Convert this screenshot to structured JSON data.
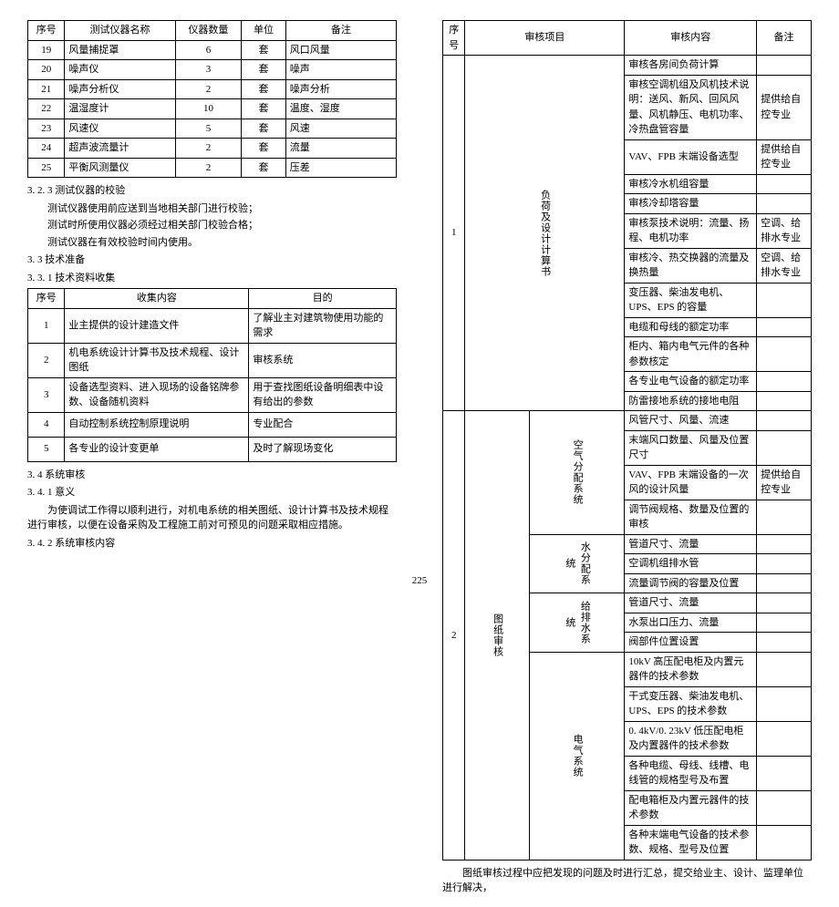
{
  "left": {
    "table1": {
      "headers": [
        "序号",
        "测试仪器名称",
        "仪器数量",
        "单位",
        "备注"
      ],
      "rows": [
        [
          "19",
          "风量捕捉罩",
          "6",
          "套",
          "风口风量"
        ],
        [
          "20",
          "噪声仪",
          "3",
          "套",
          "噪声"
        ],
        [
          "21",
          "噪声分析仪",
          "2",
          "套",
          "噪声分析"
        ],
        [
          "22",
          "温湿度计",
          "10",
          "套",
          "温度、湿度"
        ],
        [
          "23",
          "风速仪",
          "5",
          "套",
          "风速"
        ],
        [
          "24",
          "超声波流量计",
          "2",
          "套",
          "流量"
        ],
        [
          "25",
          "平衡风测量仪",
          "2",
          "套",
          "压差"
        ]
      ]
    },
    "s323": "3. 2. 3  测试仪器的校验",
    "p1": "测试仪器使用前应送到当地相关部门进行校验；",
    "p2": "测试时所使用仪器必须经过相关部门校验合格；",
    "p3": "测试仪器在有效校验时间内使用。",
    "s33": "3. 3  技术准备",
    "s331": "3. 3. 1  技术资料收集",
    "table2": {
      "headers": [
        "序号",
        "收集内容",
        "目的"
      ],
      "rows": [
        [
          "1",
          "业主提供的设计建造文件",
          "了解业主对建筑物使用功能的需求"
        ],
        [
          "2",
          "机电系统设计计算书及技术规程、设计图纸",
          "审核系统"
        ],
        [
          "3",
          "设备选型资料、进入现场的设备铭牌参数、设备随机资料",
          "用于查找图纸设备明细表中设有给出的参数"
        ],
        [
          "4",
          "自动控制系统控制原理说明",
          "专业配合"
        ],
        [
          "5",
          "各专业的设计变更单",
          "及时了解现场变化"
        ]
      ]
    },
    "s34": "3. 4  系统审核",
    "s341": "3. 4. 1  意义",
    "p4": "为使调试工作得以顺利进行，对机电系统的相关图纸、设计计算书及技术规程进行审核，以便在设备采购及工程施工前对可预见的问题采取相应措施。",
    "s342": "3. 4. 2  系统审核内容"
  },
  "right": {
    "headers": [
      "序号",
      "审核项目",
      "审核内容",
      "备注"
    ],
    "group1": {
      "num": "1",
      "proj": "负荷及设计计算书",
      "rows": [
        [
          "审核各房间负荷计算",
          ""
        ],
        [
          "审核空调机组及风机技术说明：送风、新风、回风风量、风机静压、电机功率、冷热盘管容量",
          "提供给自控专业"
        ],
        [
          "VAV、FPB 末端设备选型",
          "提供给自控专业"
        ],
        [
          "审核冷水机组容量",
          ""
        ],
        [
          "审核冷却塔容量",
          ""
        ],
        [
          "审核泵技术说明：流量、扬程、电机功率",
          "空调、给排水专业"
        ],
        [
          "审核冷、热交换器的流量及换热量",
          "空调、给排水专业"
        ],
        [
          "变压器、柴油发电机、UPS、EPS 的容量",
          ""
        ],
        [
          "电缆和母线的额定功率",
          ""
        ],
        [
          "柜内、箱内电气元件的各种参数核定",
          ""
        ],
        [
          "各专业电气设备的额定功率",
          ""
        ],
        [
          "防雷接地系统的接地电阻",
          ""
        ]
      ]
    },
    "group2": {
      "num": "2",
      "proj": "图纸审核",
      "sub1": {
        "label": "空气分配系统",
        "rows": [
          [
            "风管尺寸、风量、流速",
            ""
          ],
          [
            "末端风口数量、风量及位置尺寸",
            ""
          ],
          [
            "VAV、FPB 末端设备的一次风的设计风量",
            "提供给自控专业"
          ],
          [
            "调节阀规格、数量及位置的审核",
            ""
          ]
        ]
      },
      "sub2": {
        "label": "水分配系统",
        "rows": [
          [
            "管道尺寸、流量",
            ""
          ],
          [
            "空调机组排水管",
            ""
          ],
          [
            "流量调节阀的容量及位置",
            ""
          ]
        ]
      },
      "sub3": {
        "label": "给排水系统",
        "rows": [
          [
            "管道尺寸、流量",
            ""
          ],
          [
            "水泵出口压力、流量",
            ""
          ],
          [
            "阀部件位置设置",
            ""
          ]
        ]
      },
      "sub4": {
        "label": "电气系统",
        "rows": [
          [
            "10kV 高压配电柜及内置元器件的技术参数",
            ""
          ],
          [
            "干式变压器、柴油发电机、UPS、EPS 的技术参数",
            ""
          ],
          [
            "0. 4kV/0. 23kV 低压配电柜及内置器件的技术参数",
            ""
          ],
          [
            "各种电缆、母线、线槽、电线管的规格型号及布置",
            ""
          ],
          [
            "配电箱柜及内置元器件的技术参数",
            ""
          ],
          [
            "各种末端电气设备的技术参数、规格、型号及位置",
            ""
          ]
        ]
      }
    },
    "footer": "图纸审核过程中应把发现的问题及时进行汇总，提交给业主、设计、监理单位进行解决，"
  },
  "page": "225"
}
